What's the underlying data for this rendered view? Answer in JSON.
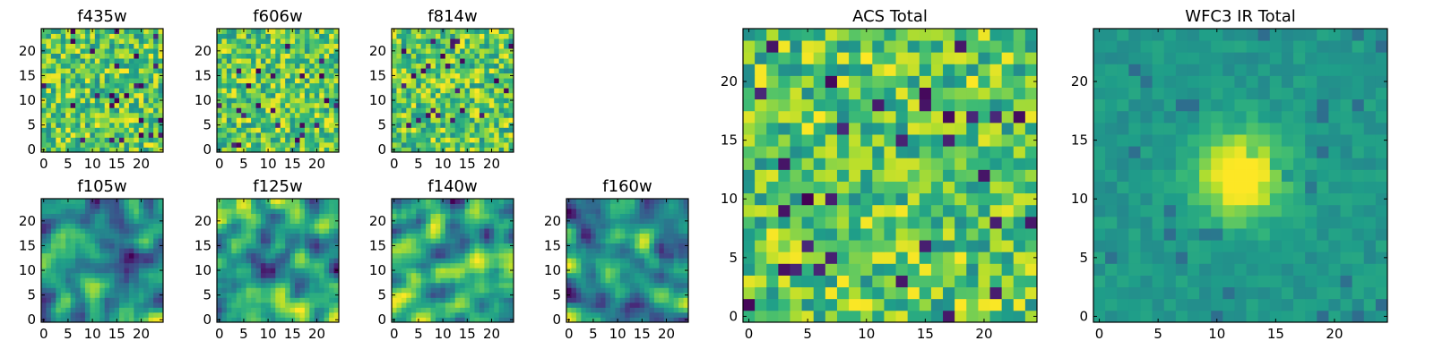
{
  "chart_data": [
    {
      "type": "heatmap",
      "title": "f435w",
      "xticks": [
        "0",
        "5",
        "10",
        "15",
        "20"
      ],
      "yticks": [
        "0",
        "5",
        "10",
        "15",
        "20"
      ],
      "grid_size": 25,
      "xlim": [
        0,
        24
      ],
      "ylim": [
        0,
        24
      ],
      "colormap": "viridis",
      "texture": "noise",
      "blob": false
    },
    {
      "type": "heatmap",
      "title": "f606w",
      "xticks": [
        "0",
        "5",
        "10",
        "15",
        "20"
      ],
      "yticks": [
        "0",
        "5",
        "10",
        "15",
        "20"
      ],
      "grid_size": 25,
      "xlim": [
        0,
        24
      ],
      "ylim": [
        0,
        24
      ],
      "colormap": "viridis",
      "texture": "noise",
      "blob": false
    },
    {
      "type": "heatmap",
      "title": "f814w",
      "xticks": [
        "0",
        "5",
        "10",
        "15",
        "20"
      ],
      "yticks": [
        "0",
        "5",
        "10",
        "15",
        "20"
      ],
      "grid_size": 25,
      "xlim": [
        0,
        24
      ],
      "ylim": [
        0,
        24
      ],
      "colormap": "viridis",
      "texture": "noise",
      "blob": false
    },
    {
      "type": "heatmap",
      "title": "f105w",
      "xticks": [
        "0",
        "5",
        "10",
        "15",
        "20"
      ],
      "yticks": [
        "0",
        "5",
        "10",
        "15",
        "20"
      ],
      "grid_size": 25,
      "xlim": [
        0,
        24
      ],
      "ylim": [
        0,
        24
      ],
      "colormap": "viridis",
      "texture": "smooth",
      "blob": false
    },
    {
      "type": "heatmap",
      "title": "f125w",
      "xticks": [
        "0",
        "5",
        "10",
        "15",
        "20"
      ],
      "yticks": [
        "0",
        "5",
        "10",
        "15",
        "20"
      ],
      "grid_size": 25,
      "xlim": [
        0,
        24
      ],
      "ylim": [
        0,
        24
      ],
      "colormap": "viridis",
      "texture": "smooth",
      "blob": false
    },
    {
      "type": "heatmap",
      "title": "f140w",
      "xticks": [
        "0",
        "5",
        "10",
        "15",
        "20"
      ],
      "yticks": [
        "0",
        "5",
        "10",
        "15",
        "20"
      ],
      "grid_size": 25,
      "xlim": [
        0,
        24
      ],
      "ylim": [
        0,
        24
      ],
      "colormap": "viridis",
      "texture": "smooth",
      "blob": false
    },
    {
      "type": "heatmap",
      "title": "f160w",
      "xticks": [
        "0",
        "5",
        "10",
        "15",
        "20"
      ],
      "yticks": [
        "0",
        "5",
        "10",
        "15",
        "20"
      ],
      "grid_size": 25,
      "xlim": [
        0,
        24
      ],
      "ylim": [
        0,
        24
      ],
      "colormap": "viridis",
      "texture": "smooth",
      "blob": false
    },
    {
      "type": "heatmap",
      "title": "ACS Total",
      "xticks": [
        "0",
        "5",
        "10",
        "15",
        "20"
      ],
      "yticks": [
        "0",
        "5",
        "10",
        "15",
        "20"
      ],
      "grid_size": 25,
      "xlim": [
        0,
        24
      ],
      "ylim": [
        0,
        24
      ],
      "colormap": "viridis",
      "texture": "blocky",
      "blob": false
    },
    {
      "type": "heatmap",
      "title": "WFC3 IR Total",
      "xticks": [
        "0",
        "5",
        "10",
        "15",
        "20"
      ],
      "yticks": [
        "0",
        "5",
        "10",
        "15",
        "20"
      ],
      "grid_size": 25,
      "xlim": [
        0,
        24
      ],
      "ylim": [
        0,
        24
      ],
      "colormap": "viridis",
      "texture": "blocky",
      "blob": true
    }
  ]
}
